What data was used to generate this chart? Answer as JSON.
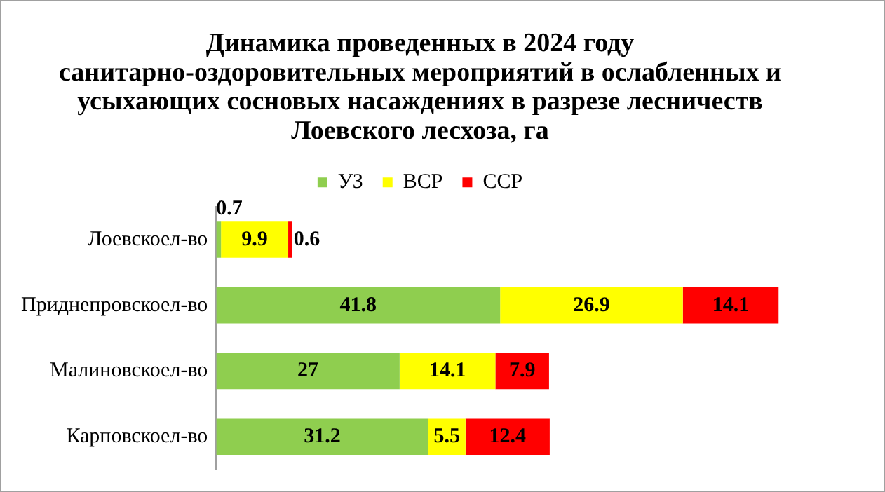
{
  "chart_data": {
    "type": "bar",
    "orientation": "horizontal",
    "stacked": true,
    "title": "Динамика проведенных в 2024 году санитарно-оздоровительных мероприятий в ослабленных и усыхающих сосновых насаждениях в разрезе лесничеств Лоевского лесхоза, га",
    "categories": [
      "Лоевскоел-во",
      "Приднепровскоел-во",
      "Малиновскоел-во",
      "Карповскоел-во"
    ],
    "series": [
      {
        "name": "УЗ",
        "color": "#8fce4f",
        "values": [
          0.7,
          41.8,
          27,
          31.2
        ]
      },
      {
        "name": "ВСР",
        "color": "#ffff00",
        "values": [
          9.9,
          26.9,
          14.1,
          5.5
        ]
      },
      {
        "name": "ССР",
        "color": "#ff0000",
        "values": [
          0.6,
          14.1,
          7.9,
          12.4
        ]
      }
    ],
    "data_labels": true,
    "legend": "top",
    "grid": false
  }
}
